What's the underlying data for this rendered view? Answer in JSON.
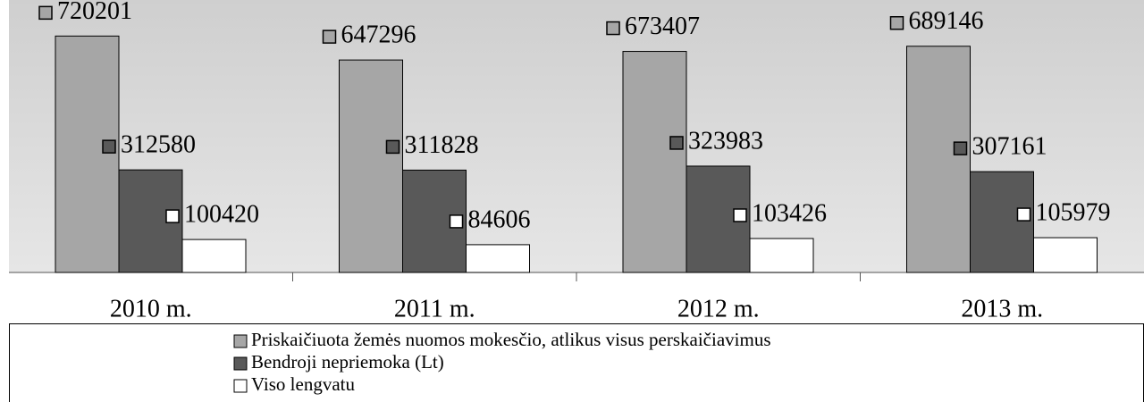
{
  "chart_data": {
    "type": "bar",
    "categories": [
      "2010 m.",
      "2011 m.",
      "2012 m.",
      "2013 m."
    ],
    "series": [
      {
        "name": "Priskaičiuota žemės nuomos mokesčio, atlikus visus perskaičiavimus",
        "color": "#a6a6a6",
        "values": [
          720201,
          647296,
          673407,
          689146
        ]
      },
      {
        "name": "Bendroji nepriemoka (Lt)",
        "color": "#595959",
        "values": [
          312580,
          311828,
          323983,
          307161
        ]
      },
      {
        "name": "Viso lengvatu",
        "color": "#ffffff",
        "values": [
          100420,
          84606,
          103426,
          105979
        ]
      }
    ],
    "ylim": [
      0,
      830000
    ],
    "legend": "bottom"
  }
}
